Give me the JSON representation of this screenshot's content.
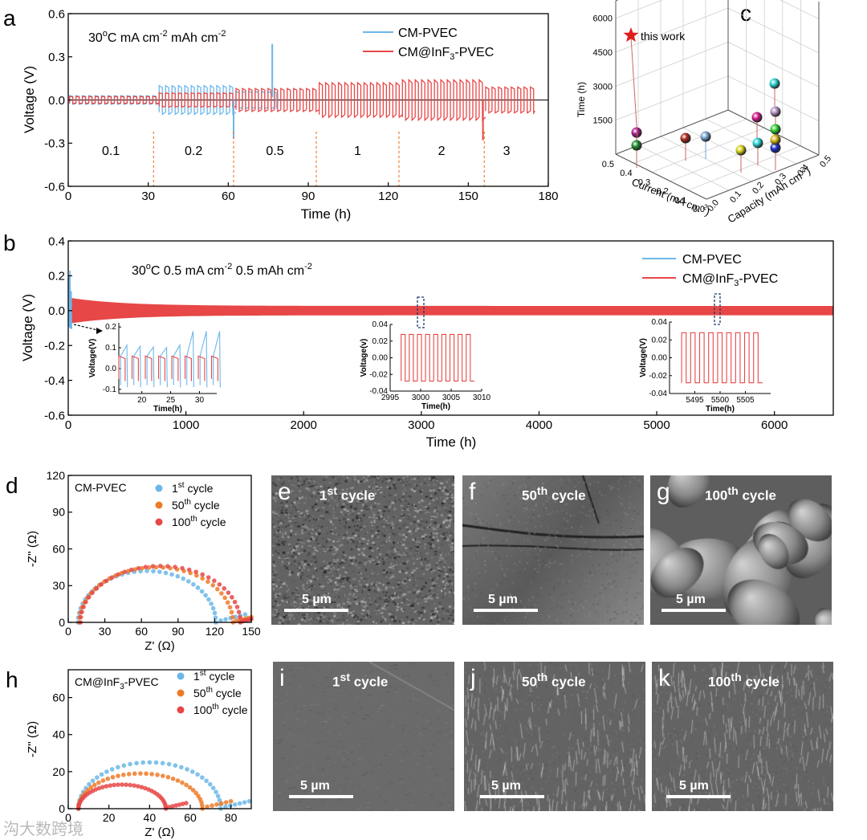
{
  "colors": {
    "blue": "#6cb7e8",
    "red": "#e74747",
    "orange": "#ee7a28",
    "dash": "#1d3b6b"
  },
  "chart_data": [
    {
      "panel": "a",
      "type": "line",
      "annotation": [
        "30",
        "o",
        "C    mA cm",
        "-2",
        "  mAh cm",
        "-2"
      ],
      "xlabel": "Time (h)",
      "ylabel": "Voltage (V)",
      "xlim": [
        0,
        180
      ],
      "ylim": [
        -0.6,
        0.6
      ],
      "xticks": [
        0,
        30,
        60,
        90,
        120,
        150,
        180
      ],
      "yticks": [
        -0.6,
        -0.3,
        0.0,
        0.3,
        0.6
      ],
      "ytick_labels": [
        "-0.6",
        "-0.3",
        "0.0",
        "0.3",
        "0.6"
      ],
      "current_densities": [
        "0.1",
        "0.2",
        "0.5",
        "1",
        "2",
        "3"
      ],
      "step_boundaries_h": [
        32,
        62,
        93,
        124,
        156
      ],
      "series": [
        {
          "name": "CM-PVEC",
          "color": "#6cb7e8",
          "until_h": 78,
          "amplitudes_V": [
            0.03,
            0.1,
            0.06
          ],
          "spike_V": 0.39,
          "spike_h": 76.5
        },
        {
          "name": "CM@InF3-PVEC",
          "color": "#e74747",
          "until_h": 175,
          "amplitudes_V": [
            0.025,
            0.05,
            0.08,
            0.12,
            0.14,
            0.09
          ]
        }
      ],
      "legend": [
        {
          "label": "CM-PVEC",
          "sub": ""
        },
        {
          "label": "CM@InF",
          "sub": "3",
          "post": "-PVEC"
        }
      ]
    },
    {
      "panel": "b",
      "type": "line",
      "annotation": [
        "30",
        "o",
        "C  0.5 mA cm",
        "-2",
        "   0.5 mAh cm",
        "-2"
      ],
      "xlabel": "Time (h)",
      "ylabel": "Voltage (V)",
      "xlim": [
        0,
        6500
      ],
      "ylim": [
        -0.6,
        0.4
      ],
      "xticks": [
        0,
        1000,
        2000,
        3000,
        4000,
        5000,
        6000
      ],
      "yticks": [
        -0.6,
        -0.4,
        -0.2,
        0.0,
        0.2,
        0.4
      ],
      "ytick_labels": [
        "-0.6",
        "-0.4",
        "-0.2",
        "0.0",
        "0.2",
        "0.4"
      ],
      "series": [
        {
          "name": "CM-PVEC",
          "color": "#6cb7e8",
          "until_h": 30,
          "peak_V": 0.23
        },
        {
          "name": "CM@InF3-PVEC",
          "color": "#e74747",
          "until_h": 6500,
          "start_amp_V": 0.075,
          "end_amp_V": 0.027
        }
      ],
      "legend": [
        {
          "label": "CM-PVEC",
          "sub": ""
        },
        {
          "label": "CM@InF",
          "sub": "3",
          "post": "-PVEC"
        }
      ],
      "insets": [
        {
          "xlabel": "Time(h)",
          "ylabel": "Voltage(V)",
          "xlim": [
            16,
            33
          ],
          "ylim": [
            -0.12,
            0.22
          ],
          "xticks": [
            20,
            25,
            30
          ],
          "yticks": [
            -0.1,
            0.0,
            0.1,
            0.2
          ],
          "ytick_labels": [
            "-0.1",
            "0.0",
            "0.1",
            "0.2"
          ]
        },
        {
          "xlabel": "Time(h)",
          "ylabel": "Voltage(v)",
          "xlim": [
            2995,
            3010
          ],
          "ylim": [
            -0.04,
            0.04
          ],
          "xticks": [
            2995,
            3000,
            3005,
            3010
          ],
          "yticks": [
            -0.04,
            -0.02,
            0.0,
            0.02,
            0.04
          ],
          "ytick_labels": [
            "-0.04",
            "-0.02",
            "0.00",
            "0.02",
            "0.04"
          ]
        },
        {
          "xlabel": "Time(h)",
          "ylabel": "Voltage(V)",
          "xlim": [
            5490,
            5510
          ],
          "ylim": [
            -0.04,
            0.04
          ],
          "xticks": [
            5495,
            5500,
            5505
          ],
          "yticks": [
            -0.04,
            -0.02,
            0.0,
            0.02,
            0.04
          ],
          "ytick_labels": [
            "-0.04",
            "-0.02",
            "0.00",
            "0.02",
            "0.04"
          ]
        }
      ]
    },
    {
      "panel": "c",
      "type": "scatter3d",
      "xlabel": "Current (mA cm",
      "xlabel_sup": "-2",
      "xlabel_post": ")",
      "ylabel": "Capacity (mAh cm",
      "ylabel_sup": "-2",
      "ylabel_post": ")",
      "zlabel": "Time (h)",
      "current_ticks": [
        "0.5",
        "0.4",
        "0.3",
        "0.2",
        "0.1",
        "0.0"
      ],
      "capacity_ticks": [
        "0.5",
        "0.4",
        "0.3",
        "0.2",
        "0.1",
        "0.0"
      ],
      "time_ticks": [
        "1500",
        "3000",
        "4500",
        "6000"
      ],
      "star_label": "this work",
      "points_time_h": [
        6400,
        1600,
        1000,
        1000,
        1200,
        900,
        800,
        2500,
        1100,
        1800,
        3200,
        4300,
        1200,
        900
      ]
    },
    {
      "panel": "d",
      "type": "scatter",
      "title": "CM-PVEC",
      "xlabel": "Z' (Ω)",
      "ylabel": "-Z'' (Ω)",
      "xlim": [
        0,
        150
      ],
      "ylim": [
        0,
        120
      ],
      "xticks": [
        0,
        30,
        60,
        90,
        120,
        150
      ],
      "yticks": [
        0,
        30,
        60,
        90,
        120
      ],
      "series": [
        {
          "name": "1st cycle",
          "color": "#6cb7e8",
          "x0": 8,
          "diameter": 113,
          "peak": 42,
          "tail_end": 145
        },
        {
          "name": "50th cycle",
          "color": "#ee7a28",
          "x0": 9,
          "diameter": 126,
          "peak": 45,
          "tail_end": 150
        },
        {
          "name": "100th cycle",
          "color": "#e74747",
          "x0": 10,
          "diameter": 131,
          "peak": 46,
          "tail_end": 150
        }
      ],
      "legend": [
        {
          "n": "1",
          "sup": "st",
          "post": " cycle"
        },
        {
          "n": "50",
          "sup": "th",
          "post": " cycle"
        },
        {
          "n": "100",
          "sup": "th",
          "post": " cycle"
        }
      ]
    },
    {
      "panel": "h",
      "type": "scatter",
      "title": "CM@InF",
      "title_sub": "3",
      "title_post": "-PVEC",
      "xlabel": "Z' (Ω)",
      "ylabel": "-Z'' (Ω)",
      "xlim": [
        0,
        90
      ],
      "ylim": [
        0,
        75
      ],
      "xticks": [
        0,
        20,
        40,
        60,
        80
      ],
      "yticks": [
        0,
        20,
        40,
        60
      ],
      "series": [
        {
          "name": "1st cycle",
          "color": "#6cb7e8",
          "x0": 5,
          "diameter": 70,
          "peak": 25,
          "tail_end": 89
        },
        {
          "name": "50th cycle",
          "color": "#ee7a28",
          "x0": 5,
          "diameter": 61,
          "peak": 19,
          "tail_end": 80
        },
        {
          "name": "100th cycle",
          "color": "#e74747",
          "x0": 5,
          "diameter": 43,
          "peak": 13,
          "tail_end": 58
        }
      ],
      "legend": [
        {
          "n": "1",
          "sup": "st",
          "post": " cycle"
        },
        {
          "n": "50",
          "sup": "th",
          "post": " cycle"
        },
        {
          "n": "100",
          "sup": "th",
          "post": " cycle"
        }
      ]
    }
  ],
  "panel_labels": [
    "a",
    "b",
    "c",
    "d",
    "h"
  ],
  "sem_images": [
    {
      "label": "e",
      "cycle_n": "1",
      "cycle_sup": "st",
      "cycle_post": " cycle",
      "scale": "5 µm",
      "texture": "rough"
    },
    {
      "label": "f",
      "cycle_n": "50",
      "cycle_sup": "th",
      "cycle_post": " cycle",
      "scale": "5 µm",
      "texture": "cracked"
    },
    {
      "label": "g",
      "cycle_n": "100",
      "cycle_sup": "th",
      "cycle_post": " cycle",
      "scale": "5 µm",
      "texture": "chunky"
    },
    {
      "label": "i",
      "cycle_n": "1",
      "cycle_sup": "st",
      "cycle_post": " cycle",
      "scale": "5 µm",
      "texture": "smooth"
    },
    {
      "label": "j",
      "cycle_n": "50",
      "cycle_sup": "th",
      "cycle_post": " cycle",
      "scale": "5 µm",
      "texture": "fibrous"
    },
    {
      "label": "k",
      "cycle_n": "100",
      "cycle_sup": "th",
      "cycle_post": " cycle",
      "scale": "5 µm",
      "texture": "fibrous"
    }
  ],
  "watermark": "沟大数跨境"
}
